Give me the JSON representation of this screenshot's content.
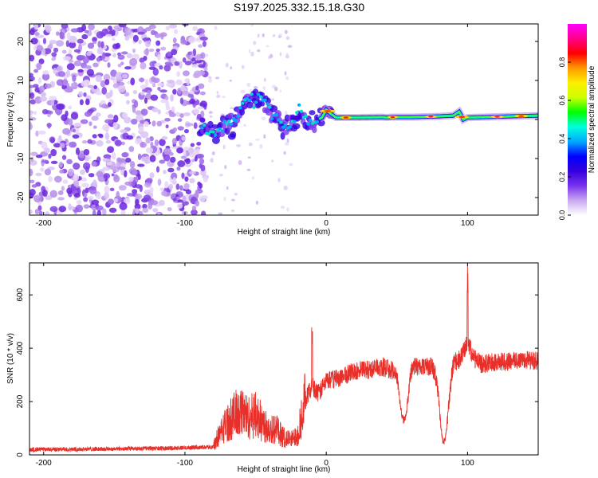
{
  "title": "S197.2025.332.15.18.G30",
  "chart_data": [
    {
      "type": "heatmap",
      "title": "S197.2025.332.15.18.G30",
      "xlabel": "Height of straight line (km)",
      "ylabel": "Frequency (Hz)",
      "xlim": [
        -210,
        150
      ],
      "ylim": [
        -24.5,
        24.5
      ],
      "xticks": [
        -200,
        -100,
        0,
        100
      ],
      "yticks": [
        -20,
        -10,
        0,
        10,
        20
      ],
      "colorbar": {
        "label": "Normalized spectral amplitude",
        "range": [
          0,
          1
        ],
        "ticks": [
          "0.0",
          "0.2",
          "0.4",
          "0.6",
          "0.8"
        ],
        "colors": [
          "#ffffff",
          "#c8a8f0",
          "#7a33ee",
          "#3300dd",
          "#0000ff",
          "#00aaff",
          "#00ffdd",
          "#00ff00",
          "#ccff00",
          "#ffee00",
          "#ff9900",
          "#ff0000",
          "#ff0088",
          "#ff00ff"
        ]
      },
      "ridge": {
        "x": [
          -90,
          -84,
          -78,
          -72,
          -66,
          -60,
          -55,
          -50,
          -45,
          -40,
          -35,
          -30,
          -25,
          -20,
          -17,
          -13,
          -8,
          -3,
          0,
          3,
          7,
          12,
          20,
          40,
          43,
          46,
          60,
          80,
          90,
          94,
          97,
          100,
          110,
          130,
          150
        ],
        "y": [
          -1,
          -2.5,
          -3.5,
          -1.5,
          -1,
          3,
          5.5,
          4.5,
          6,
          2.5,
          0.5,
          -2,
          -2,
          2,
          1,
          -0.5,
          -0.5,
          0.5,
          2.5,
          1.5,
          0.5,
          0.5,
          0.5,
          0.6,
          0.5,
          0.6,
          0.6,
          0.8,
          1,
          2,
          0,
          0.5,
          0.6,
          0.8,
          1
        ]
      }
    },
    {
      "type": "line",
      "xlabel": "Height of straight line (km)",
      "ylabel": "SNR (10 * v/v)",
      "xlim": [
        -210,
        150
      ],
      "ylim": [
        0,
        720
      ],
      "xticks": [
        -200,
        -100,
        0,
        100
      ],
      "yticks": [
        0,
        200,
        400,
        600
      ],
      "line_color": "#e8302a",
      "series": [
        {
          "name": "SNR",
          "x": [
            -210,
            -160,
            -110,
            -80,
            -75,
            -70,
            -65,
            -60,
            -55,
            -50,
            -45,
            -40,
            -35,
            -30,
            -25,
            -20,
            -15,
            -10,
            -5,
            0,
            10,
            20,
            30,
            40,
            50,
            55,
            60,
            70,
            75,
            80,
            85,
            90,
            95,
            100,
            105,
            110,
            120,
            130,
            140,
            150
          ],
          "y": [
            20,
            22,
            25,
            30,
            85,
            120,
            150,
            160,
            140,
            150,
            120,
            100,
            95,
            65,
            55,
            80,
            200,
            260,
            230,
            280,
            290,
            315,
            320,
            330,
            310,
            195,
            330,
            335,
            330,
            270,
            170,
            345,
            360,
            420,
            360,
            340,
            350,
            350,
            360,
            350
          ]
        }
      ],
      "dips": [
        {
          "x": 55,
          "y": 130
        },
        {
          "x": 83,
          "y": 50
        }
      ],
      "spikes": [
        {
          "x": -10,
          "y": 485
        },
        {
          "x": 100,
          "y": 715
        }
      ]
    }
  ]
}
